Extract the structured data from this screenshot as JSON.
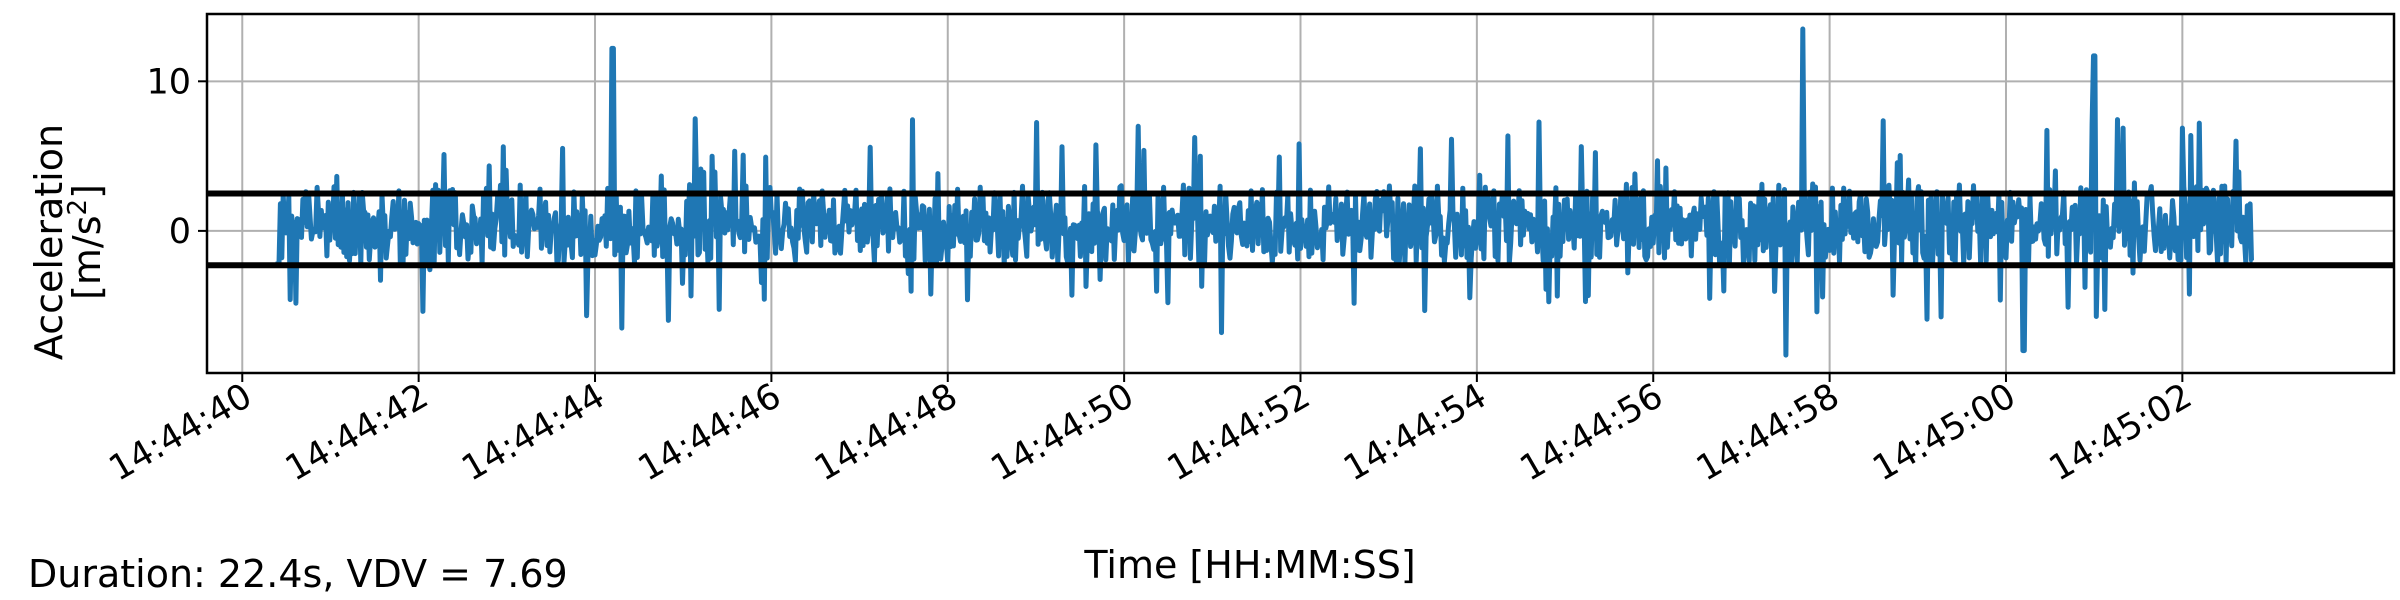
{
  "chart_data": {
    "type": "line",
    "title": "",
    "xlabel": "Time [HH:MM:SS]",
    "ylabel_line1": "Acceleration",
    "ylabel_unit_prefix": "[m/s",
    "ylabel_unit_exp": "2",
    "ylabel_unit_suffix": "]",
    "x_start": "14:44:40.4",
    "x_end": "14:45:02.8",
    "xlim": [
      "14:44:39.6",
      "14:45:04.4"
    ],
    "ylim": [
      -9.5,
      14.5
    ],
    "x_ticks": [
      "14:44:40",
      "14:44:42",
      "14:44:44",
      "14:44:46",
      "14:44:48",
      "14:44:50",
      "14:44:52",
      "14:44:54",
      "14:44:56",
      "14:44:58",
      "14:45:00",
      "14:45:02"
    ],
    "y_ticks": [
      0,
      10
    ],
    "y_tick_labels": [
      "0",
      "10"
    ],
    "grid": true,
    "line_color": "#1f77b4",
    "threshold_color": "#000000",
    "thresholds": [
      2.5,
      -2.3
    ],
    "peaks": [
      {
        "x": "14:44:44.2",
        "y": 12.2
      },
      {
        "x": "14:44:57.7",
        "y": 13.5
      },
      {
        "x": "14:45:01.0",
        "y": 11.7
      },
      {
        "x": "14:44:57.5",
        "y": -8.3
      },
      {
        "x": "14:45:00.2",
        "y": -8.0
      },
      {
        "x": "14:44:51.1",
        "y": -6.8
      },
      {
        "x": "14:44:44.3",
        "y": -6.5
      }
    ],
    "series": [
      {
        "values_description_only_internal": false
      }
    ]
  },
  "footer": {
    "summary": "Duration: 22.4s, VDV = 7.69"
  }
}
